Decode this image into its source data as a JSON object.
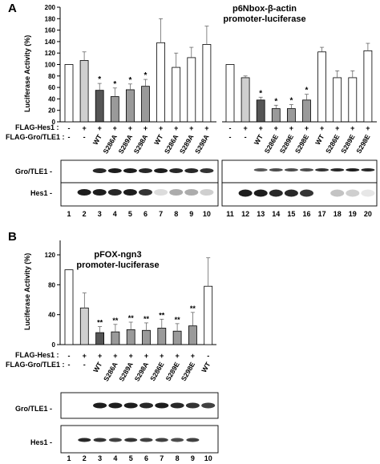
{
  "panel_a": {
    "letter": "A",
    "title_line1": "p6Nbox-β-actin",
    "title_line2": "promoter-luciferase",
    "ylabel": "Luciferase Activity (%)",
    "yticks": [
      "0",
      "20",
      "40",
      "60",
      "80",
      "100",
      "120",
      "140",
      "160",
      "180",
      "200"
    ],
    "row_hes1": "FLAG-Hes1 :",
    "row_gro": "FLAG-Gro/TLE1 :",
    "left_hes1": [
      "-",
      "+",
      "+",
      "+",
      "+",
      "+",
      "+",
      "+",
      "+",
      "+"
    ],
    "left_gro": [
      "-",
      "-",
      "WT",
      "S286A",
      "S289A",
      "S298A",
      "WT",
      "S286A",
      "S289A",
      "S298A"
    ],
    "right_hes1": [
      "-",
      "+",
      "+",
      "+",
      "+",
      "+",
      "+",
      "+",
      "+",
      "+"
    ],
    "right_gro": [
      "-",
      "-",
      "WT",
      "S286E",
      "S289E",
      "S298E",
      "WT",
      "S286E",
      "S289E",
      "S298E"
    ],
    "blot_gro": "Gro/TLE1 -",
    "blot_hes1": "Hes1 -",
    "lanes": [
      "1",
      "2",
      "3",
      "4",
      "5",
      "6",
      "7",
      "8",
      "9",
      "10",
      "11",
      "12",
      "13",
      "14",
      "15",
      "16",
      "17",
      "18",
      "19",
      "20"
    ],
    "sig": [
      "*",
      "*",
      "*",
      "*",
      "*",
      "*",
      "*",
      "*"
    ]
  },
  "panel_b": {
    "letter": "B",
    "title_line1": "pFOX-ngn3",
    "title_line2": "promoter-luciferase",
    "ylabel": "Luciferase Activity (%)",
    "yticks": [
      "0",
      "40",
      "80",
      "120"
    ],
    "row_hes1": "FLAG-Hes1 :",
    "row_gro": "FLAG-Gro/TLE1 :",
    "hes1": [
      "-",
      "+",
      "+",
      "+",
      "+",
      "+",
      "+",
      "+",
      "+",
      "-"
    ],
    "gro": [
      "-",
      "-",
      "WT",
      "S286A",
      "S289A",
      "S298A",
      "S286E",
      "S289E",
      "S298E",
      "WT"
    ],
    "blot_gro": "Gro/TLE1 -",
    "blot_hes1": "Hes1 -",
    "lanes": [
      "1",
      "2",
      "3",
      "4",
      "5",
      "6",
      "7",
      "8",
      "9",
      "10"
    ],
    "sig": [
      "**",
      "**",
      "**",
      "**",
      "**",
      "**",
      "**"
    ]
  },
  "chart_data": [
    {
      "type": "bar",
      "title": "p6Nbox-β-actin promoter-luciferase",
      "ylabel": "Luciferase Activity (%)",
      "ylim": [
        0,
        200
      ],
      "categories": [
        "1",
        "2",
        "3",
        "4",
        "5",
        "6",
        "7",
        "8",
        "9",
        "10",
        "11",
        "12",
        "13",
        "14",
        "15",
        "16",
        "17",
        "18",
        "19",
        "20"
      ],
      "values": [
        100,
        107,
        55,
        44,
        56,
        62,
        138,
        95,
        112,
        135,
        100,
        77,
        38,
        23,
        23,
        38,
        122,
        77,
        77,
        124
      ],
      "errors": [
        0,
        15,
        12,
        15,
        10,
        12,
        42,
        25,
        18,
        32,
        0,
        3,
        5,
        6,
        7,
        10,
        8,
        12,
        12,
        13
      ],
      "fills": [
        "white",
        "lightgray",
        "dimgray",
        "gray",
        "gray",
        "gray",
        "white",
        "white",
        "white",
        "white",
        "white",
        "lightgray",
        "dimgray",
        "gray",
        "gray",
        "gray",
        "white",
        "white",
        "white",
        "white"
      ]
    },
    {
      "type": "bar",
      "title": "pFOX-ngn3 promoter-luciferase",
      "ylabel": "Luciferase Activity (%)",
      "ylim": [
        0,
        120
      ],
      "categories": [
        "1",
        "2",
        "3",
        "4",
        "5",
        "6",
        "7",
        "8",
        "9",
        "10"
      ],
      "values": [
        100,
        49,
        16,
        17,
        20,
        19,
        22,
        18,
        25,
        78
      ],
      "errors": [
        0,
        20,
        8,
        10,
        10,
        10,
        12,
        10,
        18,
        38
      ],
      "fills": [
        "white",
        "lightgray",
        "dimgray",
        "gray",
        "gray",
        "gray",
        "gray",
        "gray",
        "gray",
        "white"
      ]
    }
  ],
  "colors": {
    "dimgray": "#555555",
    "gray": "#9a9a9a",
    "lightgray": "#cfcfcf",
    "white": "#ffffff"
  }
}
